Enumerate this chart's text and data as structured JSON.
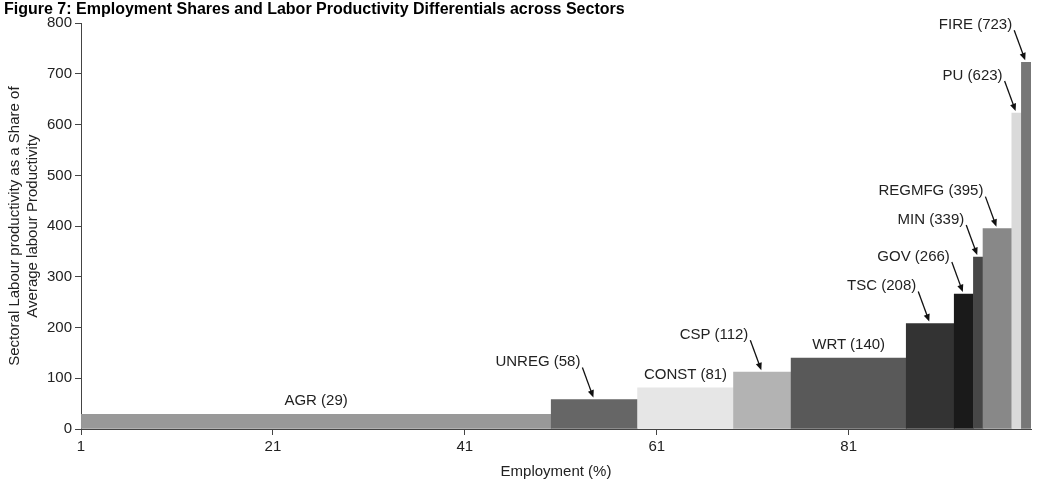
{
  "chart_data": {
    "type": "histogram",
    "title": "Figure 7: Employment Shares and Labor Productivity Differentials across Sectors",
    "xlabel": "Employment (%)",
    "ylabel": "Sectoral Labour productivity as a Share of\nAverage labour Productivity",
    "bins": [
      1,
      50,
      59,
      69,
      75,
      87,
      92,
      94,
      95,
      98,
      99,
      100
    ],
    "values": [
      29,
      58,
      81,
      112,
      140,
      208,
      266,
      339,
      395,
      623,
      723
    ],
    "colors": [
      "#999999",
      "#666666",
      "#e6e6e6",
      "#b3b3b3",
      "#595959",
      "#333333",
      "#1a1a1a",
      "#474747",
      "#888888",
      "#dadada",
      "#777777"
    ],
    "xlim": [
      1,
      100
    ],
    "xticks": [
      1,
      21,
      41,
      61,
      81
    ],
    "ylim": [
      0,
      800
    ],
    "yticks": [
      0,
      100,
      200,
      300,
      400,
      500,
      600,
      700,
      800
    ],
    "grid": false,
    "legend": false,
    "annotations": [
      {
        "text": "AGR (29)",
        "x": 25.5,
        "y": 29
      },
      {
        "text": "UNREG (58)",
        "x": 54.5,
        "y": 58
      },
      {
        "text": "CONST (81)",
        "x": 64,
        "y": 81
      },
      {
        "text": "CSP (112)",
        "x": 72,
        "y": 112
      },
      {
        "text": "WRT (140)",
        "x": 81,
        "y": 140
      },
      {
        "text": "TSC (208)",
        "x": 89.5,
        "y": 208
      },
      {
        "text": "GOV (266)",
        "x": 93,
        "y": 266
      },
      {
        "text": "MIN (339)",
        "x": 94.5,
        "y": 339
      },
      {
        "text": "REGMFG (395)",
        "x": 96.5,
        "y": 395
      },
      {
        "text": "PU (623)",
        "x": 98.5,
        "y": 623
      },
      {
        "text": "FIRE (723)",
        "x": 99.5,
        "y": 723
      }
    ]
  }
}
